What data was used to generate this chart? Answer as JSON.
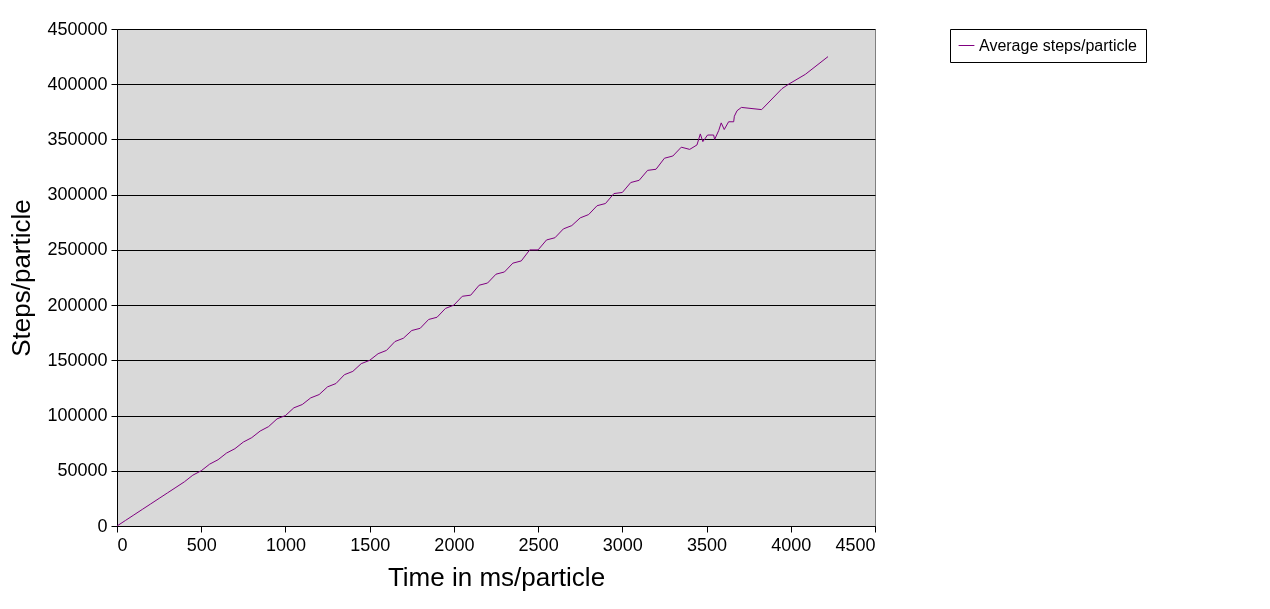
{
  "chart_data": {
    "type": "line",
    "xlabel": "Time in ms/particle",
    "ylabel": "Steps/particle",
    "x": [
      0,
      50,
      100,
      150,
      200,
      250,
      300,
      350,
      400,
      450,
      500,
      550,
      600,
      650,
      700,
      750,
      800,
      850,
      900,
      950,
      1000,
      1050,
      1100,
      1150,
      1200,
      1250,
      1300,
      1350,
      1400,
      1450,
      1500,
      1550,
      1600,
      1650,
      1700,
      1750,
      1800,
      1850,
      1900,
      1950,
      2000,
      2050,
      2100,
      2150,
      2200,
      2250,
      2300,
      2350,
      2400,
      2450,
      2500,
      2550,
      2600,
      2650,
      2700,
      2750,
      2800,
      2850,
      2900,
      2950,
      3000,
      3050,
      3100,
      3150,
      3200,
      3250,
      3300,
      3350,
      3400,
      3443,
      3463,
      3478,
      3506,
      3542,
      3548,
      3572,
      3587,
      3605,
      3631,
      3661,
      3665,
      3681,
      3707,
      3827,
      3948,
      3987,
      4087,
      4221
    ],
    "series": [
      {
        "name": "Average steps/particle",
        "color": "#800080",
        "values": [
          0,
          5000,
          10000,
          15000,
          20000,
          25000,
          30000,
          35000,
          40000,
          46000,
          50000,
          56000,
          60000,
          66000,
          70000,
          76000,
          80000,
          86000,
          90000,
          97000,
          100000,
          107000,
          110000,
          116000,
          119000,
          126000,
          129000,
          137000,
          140000,
          147000,
          150000,
          156000,
          159000,
          167000,
          170000,
          177000,
          179000,
          187000,
          189000,
          197000,
          200000,
          208000,
          209000,
          218000,
          220000,
          228000,
          230000,
          238000,
          240000,
          250000,
          250000,
          259000,
          261000,
          269000,
          272000,
          279000,
          282000,
          290000,
          292000,
          301000,
          302000,
          311000,
          313000,
          322000,
          323000,
          333000,
          335000,
          343000,
          341000,
          345000,
          355000,
          348000,
          354000,
          354000,
          350000,
          358000,
          365000,
          359000,
          366000,
          366000,
          371000,
          376000,
          379000,
          377000,
          396000,
          400000,
          409000,
          425000
        ]
      }
    ],
    "xlim": [
      0,
      4500
    ],
    "xticks": [
      0,
      500,
      1000,
      1500,
      2000,
      2500,
      3000,
      3500,
      4000,
      4500
    ],
    "ylim": [
      0,
      450000
    ],
    "yticks": [
      0,
      50000,
      100000,
      150000,
      200000,
      250000,
      300000,
      350000,
      400000,
      450000
    ],
    "grid": "y",
    "legend": "right"
  }
}
